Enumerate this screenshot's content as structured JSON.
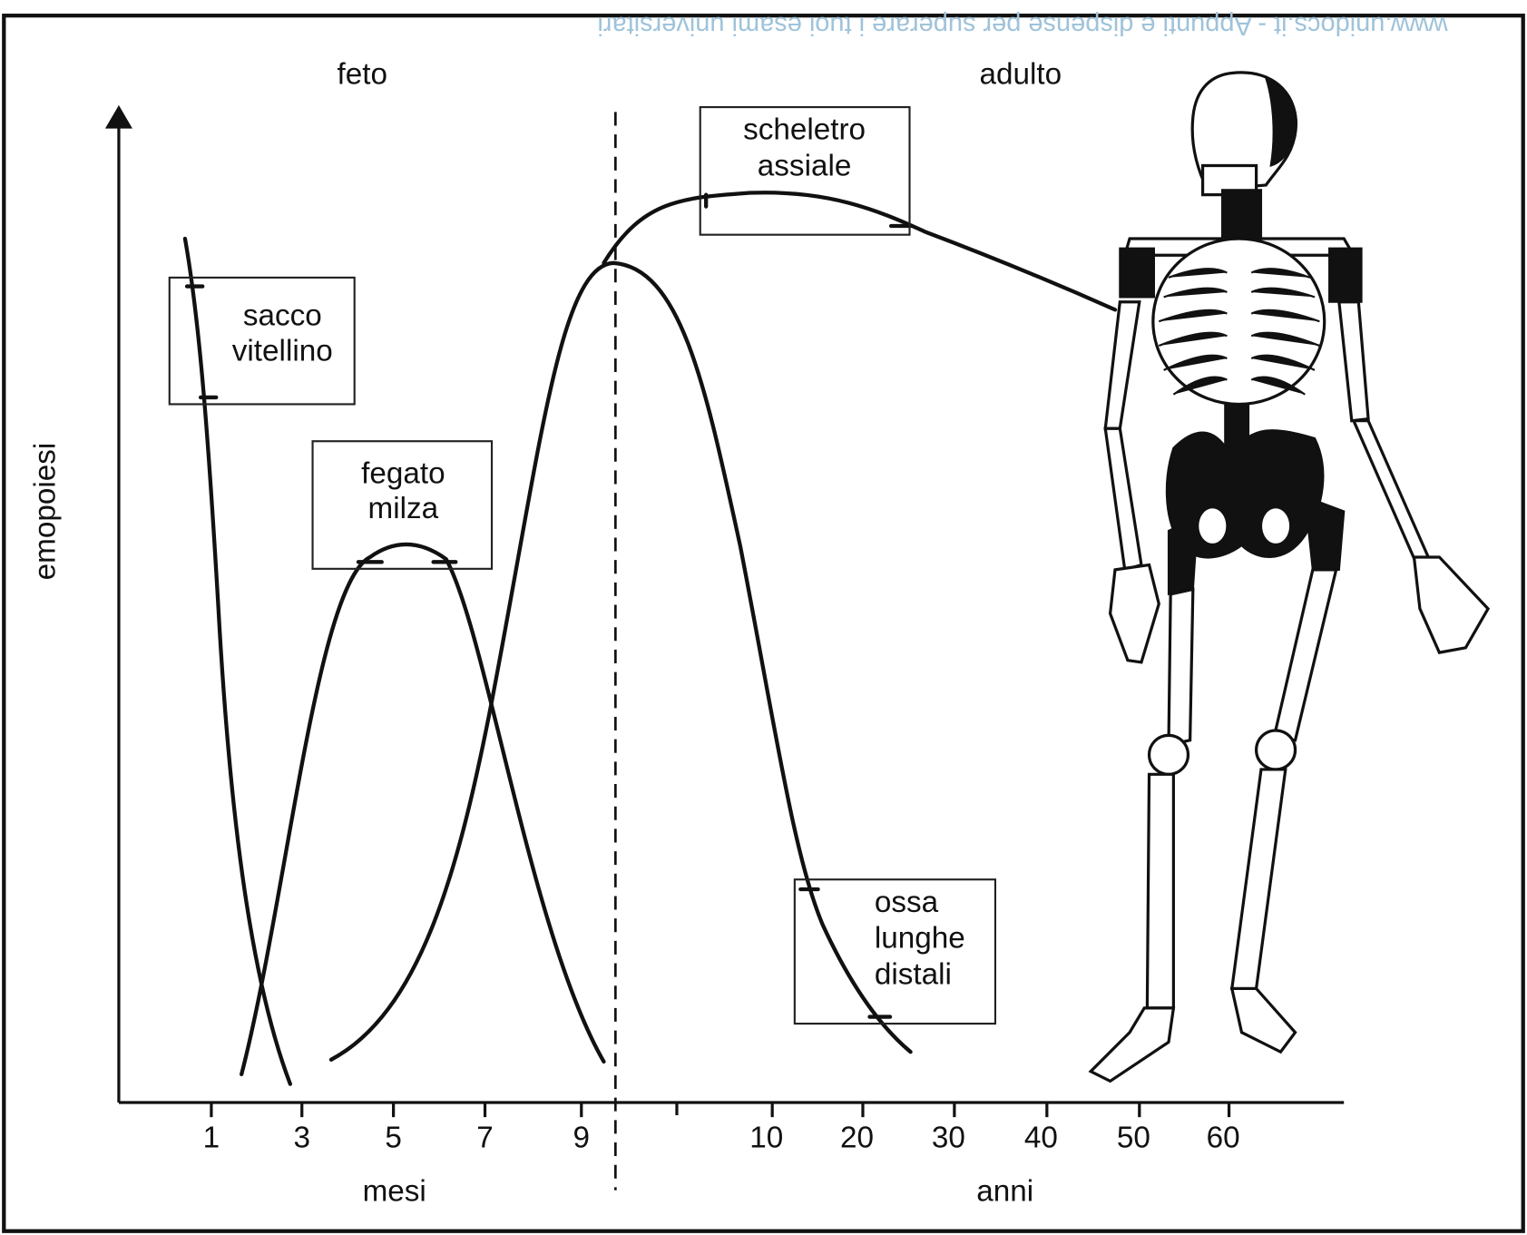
{
  "watermark": "www.unidocs.it  -  Appunti e dispense per superare i tuoi esami universitari",
  "periods": {
    "fetal": "feto",
    "adult": "adulto"
  },
  "y_axis_label": "emopoiesi",
  "x_axis": {
    "months": {
      "label": "mesi",
      "ticks": [
        "1",
        "3",
        "5",
        "7",
        "9"
      ]
    },
    "years": {
      "label": "anni",
      "ticks": [
        "10",
        "20",
        "30",
        "40",
        "50",
        "60"
      ]
    }
  },
  "sites": {
    "yolk_sac": [
      "sacco",
      "vitellino"
    ],
    "liver_spleen": [
      "fegato",
      "milza"
    ],
    "axial_skeleton": [
      "scheletro",
      "assiale"
    ],
    "long_bones": [
      "ossa",
      "lunghe",
      "distali"
    ]
  }
}
